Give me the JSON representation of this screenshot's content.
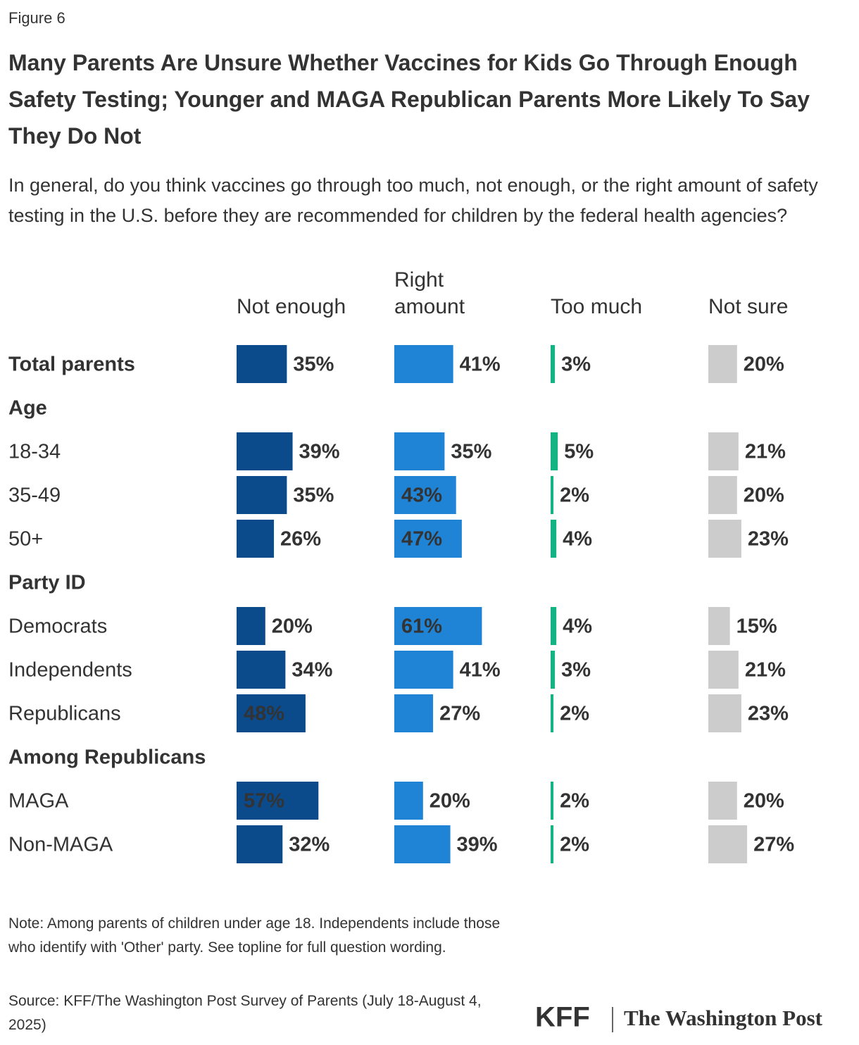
{
  "figure_label": "Figure 6",
  "chart_data": {
    "type": "bar",
    "title": "Many Parents Are Unsure Whether Vaccines for Kids Go Through Enough Safety Testing; Younger and MAGA Republican Parents More Likely To Say They Do Not",
    "subtitle": "In general, do you think vaccines go through too much, not enough, or the right amount of safety testing in the U.S. before they are recommended for children by the federal health agencies?",
    "categories": [
      "Total parents",
      "Age",
      "18-34",
      "35-49",
      "50+",
      "Party ID",
      "Democrats",
      "Independents",
      "Republicans",
      "Among Republicans",
      "MAGA",
      "Non-MAGA"
    ],
    "series": [
      {
        "name": "Not enough",
        "color": "#0b4a8b",
        "values": [
          35,
          null,
          39,
          35,
          26,
          null,
          20,
          34,
          48,
          null,
          57,
          32
        ],
        "value_labels": [
          "35%",
          null,
          "39%",
          "35%",
          "26%",
          null,
          "20%",
          "34%",
          "48%",
          null,
          "57%",
          "32%"
        ]
      },
      {
        "name": "Right amount",
        "color": "#1f83d6",
        "values": [
          41,
          null,
          35,
          43,
          47,
          null,
          61,
          41,
          27,
          null,
          20,
          39
        ],
        "value_labels": [
          "41%",
          null,
          "35%",
          "43%",
          "47%",
          null,
          "61%",
          "41%",
          "27%",
          null,
          "20%",
          "39%"
        ]
      },
      {
        "name": "Too much",
        "color": "#14b383",
        "values": [
          3,
          null,
          5,
          2,
          4,
          null,
          4,
          3,
          2,
          null,
          2,
          2
        ],
        "value_labels": [
          "3%",
          null,
          "5%",
          "2%",
          "4%",
          null,
          "4%",
          "3%",
          "2%",
          null,
          "2%",
          "2%"
        ]
      },
      {
        "name": "Not sure",
        "color": "#cccccc",
        "values": [
          20,
          null,
          21,
          20,
          23,
          null,
          15,
          21,
          23,
          null,
          20,
          27
        ],
        "value_labels": [
          "20%",
          null,
          "21%",
          "20%",
          "23%",
          null,
          "15%",
          "21%",
          "23%",
          null,
          "20%",
          "27%"
        ]
      }
    ]
  },
  "note": "Note: Among parents of children under age 18. Independents include those who identify with 'Other' party. See topline for full question wording.",
  "source": "Source: KFF/The Washington Post Survey of Parents (July 18-August 4, 2025)",
  "logos": [
    "KFF",
    "The Washington Post"
  ]
}
